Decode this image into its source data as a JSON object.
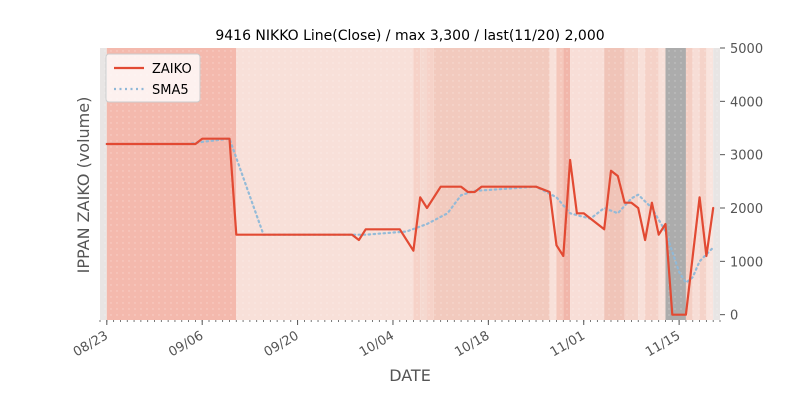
{
  "chart_data": {
    "type": "line",
    "title": "9416 NIKKO Line(Close) / max 3,300 / last(11/20) 2,000",
    "xlabel": "DATE",
    "ylabel": "IPPAN ZAIKO (volume)",
    "x_tick_labels": [
      "08/23",
      "09/06",
      "09/20",
      "10/04",
      "10/18",
      "11/01",
      "11/15"
    ],
    "y_tick_labels": [
      "0",
      "1000",
      "2000",
      "3000",
      "4000",
      "5000"
    ],
    "y_tick_values": [
      0,
      1000,
      2000,
      3000,
      4000,
      5000
    ],
    "ylim": [
      -100,
      5000
    ],
    "y_axis_side": "right",
    "legend_position": "top-left",
    "grid": false,
    "series": [
      {
        "name": "ZAIKO",
        "color": "#e24a33",
        "style": "solid",
        "points": [
          [
            "08/23",
            3200
          ],
          [
            "08/30",
            3200
          ],
          [
            "09/05",
            3200
          ],
          [
            "09/06",
            3300
          ],
          [
            "09/07",
            3300
          ],
          [
            "09/10",
            3300
          ],
          [
            "09/11",
            1500
          ],
          [
            "09/28",
            1500
          ],
          [
            "09/29",
            1400
          ],
          [
            "09/30",
            1600
          ],
          [
            "10/05",
            1600
          ],
          [
            "10/07",
            1200
          ],
          [
            "10/08",
            2200
          ],
          [
            "10/09",
            2000
          ],
          [
            "10/11",
            2400
          ],
          [
            "10/14",
            2400
          ],
          [
            "10/15",
            2300
          ],
          [
            "10/16",
            2300
          ],
          [
            "10/17",
            2400
          ],
          [
            "10/25",
            2400
          ],
          [
            "10/27",
            2300
          ],
          [
            "10/28",
            1300
          ],
          [
            "10/29",
            1100
          ],
          [
            "10/30",
            2900
          ],
          [
            "10/31",
            1900
          ],
          [
            "11/01",
            1900
          ],
          [
            "11/04",
            1600
          ],
          [
            "11/05",
            2700
          ],
          [
            "11/06",
            2600
          ],
          [
            "11/07",
            2100
          ],
          [
            "11/08",
            2100
          ],
          [
            "11/09",
            2000
          ],
          [
            "11/10",
            1400
          ],
          [
            "11/11",
            2100
          ],
          [
            "11/12",
            1500
          ],
          [
            "11/13",
            1700
          ],
          [
            "11/14",
            0
          ],
          [
            "11/16",
            0
          ],
          [
            "11/18",
            2200
          ],
          [
            "11/19",
            1100
          ],
          [
            "11/20",
            2000
          ]
        ]
      },
      {
        "name": "SMA5",
        "color": "#8eb8d8",
        "style": "dotted",
        "points": [
          [
            "08/23",
            3200
          ],
          [
            "09/04",
            3200
          ],
          [
            "09/06",
            3240
          ],
          [
            "09/10",
            3300
          ],
          [
            "09/15",
            1500
          ],
          [
            "09/28",
            1500
          ],
          [
            "09/30",
            1500
          ],
          [
            "10/06",
            1560
          ],
          [
            "10/09",
            1700
          ],
          [
            "10/12",
            1900
          ],
          [
            "10/14",
            2240
          ],
          [
            "10/16",
            2320
          ],
          [
            "10/25",
            2400
          ],
          [
            "10/28",
            2200
          ],
          [
            "10/30",
            1900
          ],
          [
            "11/02",
            1800
          ],
          [
            "11/04",
            2000
          ],
          [
            "11/06",
            1900
          ],
          [
            "11/08",
            2180
          ],
          [
            "11/09",
            2250
          ],
          [
            "11/11",
            2000
          ],
          [
            "11/13",
            1560
          ],
          [
            "11/15",
            800
          ],
          [
            "11/16",
            600
          ],
          [
            "11/17",
            700
          ],
          [
            "11/18",
            1000
          ],
          [
            "11/20",
            1260
          ]
        ]
      }
    ],
    "background_bands": [
      [
        "08/22",
        "08/23",
        "#e8e5e4"
      ],
      [
        "08/23",
        "09/11",
        "#f4b9ad"
      ],
      [
        "09/11",
        "10/07",
        "#f8e0d9"
      ],
      [
        "10/07",
        "10/08",
        "#f6d2c8"
      ],
      [
        "10/08",
        "10/09",
        "#f5d8cf"
      ],
      [
        "10/09",
        "10/10",
        "#f6d2c8"
      ],
      [
        "10/10",
        "10/27",
        "#f2cabe"
      ],
      [
        "10/27",
        "10/28",
        "#f8e0d9"
      ],
      [
        "10/28",
        "10/29",
        "#f5c7bb"
      ],
      [
        "10/29",
        "10/30",
        "#f1b6aa"
      ],
      [
        "10/30",
        "11/04",
        "#f8ded7"
      ],
      [
        "11/04",
        "11/07",
        "#f0c4b8"
      ],
      [
        "11/07",
        "11/09",
        "#f5d4ca"
      ],
      [
        "11/09",
        "11/10",
        "#f8e0d9"
      ],
      [
        "11/10",
        "11/12",
        "#f5d2c8"
      ],
      [
        "11/12",
        "11/13",
        "#f8e0d9"
      ],
      [
        "11/13",
        "11/16",
        "#acacac"
      ],
      [
        "11/16",
        "11/17",
        "#f4cfc4"
      ],
      [
        "11/17",
        "11/18",
        "#f7ddd6"
      ],
      [
        "11/18",
        "11/19",
        "#f5d3c9"
      ],
      [
        "11/19",
        "11/20",
        "#f9e4de"
      ],
      [
        "11/20",
        "11/21",
        "#e8e5e4"
      ]
    ]
  }
}
